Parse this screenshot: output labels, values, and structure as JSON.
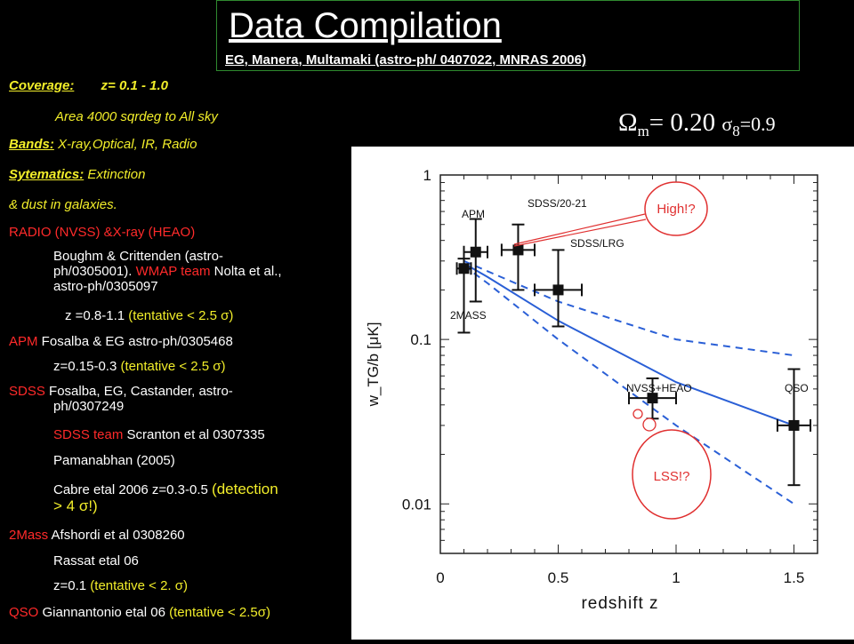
{
  "header": {
    "title": "Data Compilation",
    "subtitle": "EG, Manera, Multamaki  (astro-ph/ 0407022, MNRAS 2006)"
  },
  "left_panel": {
    "coverage_label": "Coverage:",
    "coverage_value": "z= 0.1 - 1.0",
    "area": "Area 4000 sqrdeg to All sky",
    "bands_label": "Bands:",
    "bands_value": " X-ray,Optical, IR, Radio",
    "systematics_label": "Sytematics:",
    "systematics_value": " Extinction",
    "dust": "& dust in galaxies.",
    "radio_head": "RADIO (NVSS) &X-ray (HEAO)",
    "radio_ref1": "Boughm & Crittenden (astro-",
    "radio_ref2a": "ph/0305001). ",
    "radio_ref2b": "WMAP team",
    "radio_ref2c": " Nolta et al.,",
    "radio_ref3": "astro-ph/0305097",
    "radio_z_a": "z =0.8-1.1 ",
    "radio_z_b": "(tentative < 2.5 σ)",
    "apm_label": "APM",
    "apm_ref": "  Fosalba & EG astro-ph/0305468",
    "apm_z_a": "z=0.15-0.3 ",
    "apm_z_b": "(tentative < 2.5 σ)",
    "sdss_label": "SDSS",
    "sdss_ref1": " Fosalba, EG, Castander, astro-",
    "sdss_ref2": "ph/0307249",
    "sdss_team_a": "SDSS team",
    "sdss_team_b": " Scranton et al 0307335",
    "pamana": "Pamanabhan (2005)",
    "cabre_a": "Cabre etal 2006   z=0.3-0.5 ",
    "cabre_b": "(detection",
    "cabre_c": "> 4 σ!)",
    "mass2_label": "2Mass",
    "mass2_ref": "  Afshordi et al 0308260",
    "rassat": "Rassat etal 06",
    "mass2_z_a": "z=0.1 ",
    "mass2_z_b": "(tentative < 2. σ)",
    "qso_label": "QSO",
    "qso_ref": "   Giannantonio etal 06 ",
    "qso_z": "(tentative < 2.5σ)"
  },
  "cosmology": {
    "omega_symbol": "Ω",
    "omega_sub": "m",
    "omega_val": "= 0.20  ",
    "sigma_symbol": "σ",
    "sigma_sub": "8",
    "sigma_val": "=0.9"
  },
  "colors": {
    "yellow": "#f2ee2a",
    "red": "#ff2a2a",
    "model_blue": "#2a5fd6",
    "bubble_red": "#e03030"
  },
  "chart_data": {
    "type": "scatter",
    "ylabel": "w_TG/b [μK]",
    "xlabel": "redshift  z",
    "xlim": [
      0,
      1.6
    ],
    "ylim": [
      0.005,
      1
    ],
    "yscale": "log",
    "x_ticks": [
      "0",
      "0.5",
      "1",
      "1.5"
    ],
    "y_ticks": [
      "0.01",
      "0.1",
      "1"
    ],
    "survey_labels": [
      "APM",
      "SDSS/20-21",
      "SDSS/LRG",
      "2MASS",
      "NVSS+HEAO",
      "QSO"
    ],
    "points": [
      {
        "x": 0.1,
        "y": 0.27,
        "yerr_low": 0.11,
        "yerr_high": 0.31,
        "xerr": 0.03
      },
      {
        "x": 0.15,
        "y": 0.34,
        "yerr_low": 0.17,
        "yerr_high": 0.54,
        "xerr": 0.05
      },
      {
        "x": 0.33,
        "y": 0.35,
        "yerr_low": 0.2,
        "yerr_high": 0.5,
        "xerr": 0.07
      },
      {
        "x": 0.5,
        "y": 0.2,
        "yerr_low": 0.12,
        "yerr_high": 0.35,
        "xerr": 0.1
      },
      {
        "x": 0.9,
        "y": 0.044,
        "yerr_low": 0.033,
        "yerr_high": 0.058,
        "xerr": 0.1
      },
      {
        "x": 1.5,
        "y": 0.03,
        "yerr_low": 0.013,
        "yerr_high": 0.066,
        "xerr": 0.07
      }
    ],
    "model_curve": {
      "x": [
        0.1,
        0.2,
        0.5,
        1.0,
        1.5
      ],
      "y": [
        0.29,
        0.24,
        0.13,
        0.055,
        0.03
      ]
    },
    "band_upper": {
      "x": [
        0.1,
        0.2,
        0.5,
        1.0,
        1.5
      ],
      "y": [
        0.3,
        0.26,
        0.17,
        0.1,
        0.08
      ]
    },
    "band_lower": {
      "x": [
        0.1,
        0.2,
        0.5,
        1.0,
        1.5
      ],
      "y": [
        0.28,
        0.22,
        0.1,
        0.03,
        0.01
      ]
    },
    "annotations": [
      "High!?",
      "LSS!?"
    ]
  }
}
